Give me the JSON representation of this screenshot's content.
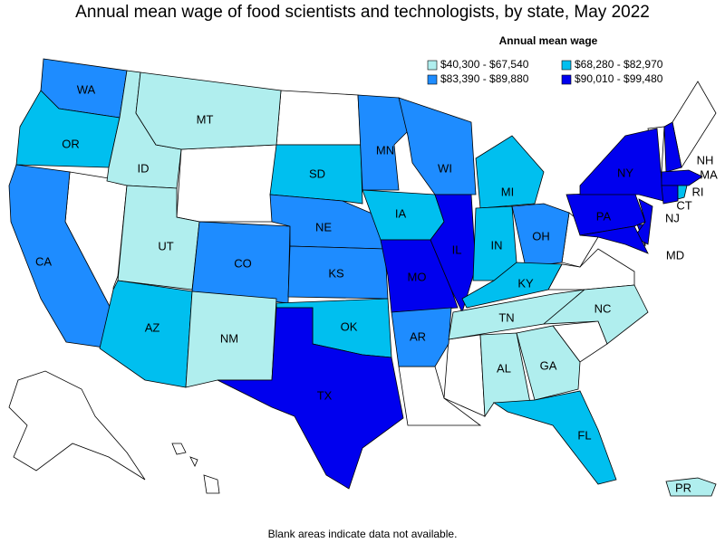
{
  "title": "Annual mean wage of food scientists and technologists, by state, May 2022",
  "legend": {
    "title": "Annual mean wage",
    "items": [
      {
        "label": "$40,300 - $67,540",
        "color": "#b0eeee"
      },
      {
        "label": "$68,280 - $82,970",
        "color": "#00bfef"
      },
      {
        "label": "$83,390 - $89,880",
        "color": "#1e8cff"
      },
      {
        "label": "$90,010 - $99,480",
        "color": "#0000ee"
      }
    ]
  },
  "states": [
    {
      "label": "WA",
      "legend_item": 2
    },
    {
      "label": "OR",
      "legend_item": 1
    },
    {
      "label": "CA",
      "legend_item": 2
    },
    {
      "label": "ID",
      "legend_item": 0
    },
    {
      "label": "MT",
      "legend_item": 0
    },
    {
      "label": "UT",
      "legend_item": 0
    },
    {
      "label": "CO",
      "legend_item": 2
    },
    {
      "label": "AZ",
      "legend_item": 1
    },
    {
      "label": "NM",
      "legend_item": 0
    },
    {
      "label": "SD",
      "legend_item": 1
    },
    {
      "label": "NE",
      "legend_item": 2
    },
    {
      "label": "KS",
      "legend_item": 2
    },
    {
      "label": "OK",
      "legend_item": 1
    },
    {
      "label": "TX",
      "legend_item": 3
    },
    {
      "label": "MN",
      "legend_item": 2
    },
    {
      "label": "IA",
      "legend_item": 1
    },
    {
      "label": "MO",
      "legend_item": 3
    },
    {
      "label": "AR",
      "legend_item": 2
    },
    {
      "label": "WI",
      "legend_item": 2
    },
    {
      "label": "IL",
      "legend_item": 3
    },
    {
      "label": "MI",
      "legend_item": 1
    },
    {
      "label": "IN",
      "legend_item": 1
    },
    {
      "label": "OH",
      "legend_item": 2
    },
    {
      "label": "KY",
      "legend_item": 1
    },
    {
      "label": "TN",
      "legend_item": 0
    },
    {
      "label": "AL",
      "legend_item": 0
    },
    {
      "label": "GA",
      "legend_item": 0
    },
    {
      "label": "FL",
      "legend_item": 1
    },
    {
      "label": "NC",
      "legend_item": 0
    },
    {
      "label": "PA",
      "legend_item": 3
    },
    {
      "label": "NY",
      "legend_item": 3
    },
    {
      "label": "NJ",
      "legend_item": 3
    },
    {
      "label": "MD",
      "legend_item": 3
    },
    {
      "label": "NH",
      "legend_item": 3
    },
    {
      "label": "MA",
      "legend_item": 3
    },
    {
      "label": "CT",
      "legend_item": 3
    },
    {
      "label": "RI",
      "legend_item": 1
    },
    {
      "label": "PR",
      "legend_item": 0
    }
  ],
  "footnote": "Blank areas indicate data not available."
}
